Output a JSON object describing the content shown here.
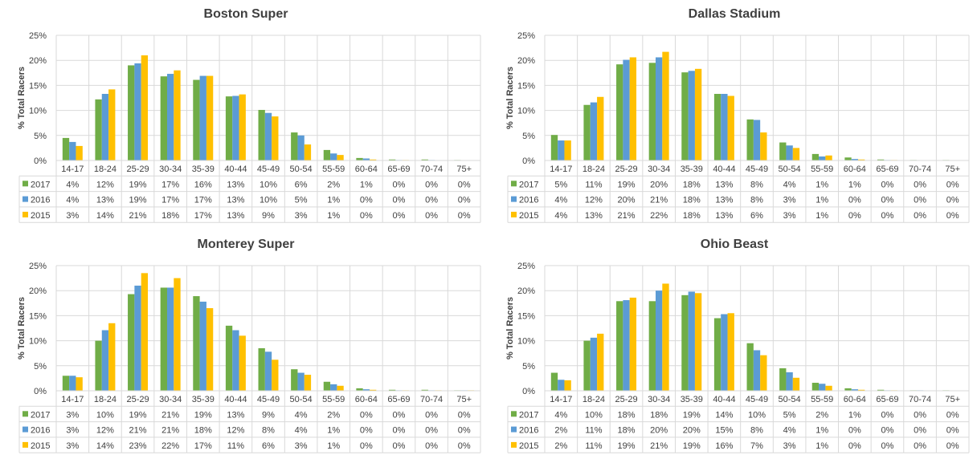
{
  "colors": {
    "2017": "#70ad47",
    "2016": "#5b9bd5",
    "2015": "#ffc000"
  },
  "chart_data": [
    {
      "type": "bar",
      "title": "Boston Super",
      "ylabel": "% Total Racers",
      "ylim": [
        0,
        25
      ],
      "yticks": [
        "0%",
        "5%",
        "10%",
        "15%",
        "20%",
        "25%"
      ],
      "categories": [
        "14-17",
        "18-24",
        "25-29",
        "30-34",
        "35-39",
        "40-44",
        "45-49",
        "50-54",
        "55-59",
        "60-64",
        "65-69",
        "70-74",
        "75+"
      ],
      "series": [
        {
          "name": "2017",
          "values": [
            4.5,
            12.2,
            19.0,
            16.8,
            16.1,
            12.8,
            10.1,
            5.6,
            2.1,
            0.5,
            0.2,
            0.2,
            0.1
          ],
          "labels": [
            "4%",
            "12%",
            "19%",
            "17%",
            "16%",
            "13%",
            "10%",
            "6%",
            "2%",
            "1%",
            "0%",
            "0%",
            "0%"
          ]
        },
        {
          "name": "2016",
          "values": [
            3.7,
            13.3,
            19.4,
            17.3,
            16.9,
            12.9,
            9.5,
            5.0,
            1.4,
            0.4,
            0.1,
            0.1,
            0.0
          ],
          "labels": [
            "4%",
            "13%",
            "19%",
            "17%",
            "17%",
            "13%",
            "10%",
            "5%",
            "1%",
            "0%",
            "0%",
            "0%",
            "0%"
          ]
        },
        {
          "name": "2015",
          "values": [
            2.9,
            14.2,
            21.0,
            18.0,
            16.9,
            13.2,
            8.8,
            3.2,
            1.1,
            0.2,
            0.1,
            0.0,
            0.0
          ],
          "labels": [
            "3%",
            "14%",
            "21%",
            "18%",
            "17%",
            "13%",
            "9%",
            "3%",
            "1%",
            "0%",
            "0%",
            "0%",
            "0%"
          ]
        }
      ]
    },
    {
      "type": "bar",
      "title": "Dallas Stadium",
      "ylabel": "% Total Racers",
      "ylim": [
        0,
        25
      ],
      "yticks": [
        "0%",
        "5%",
        "10%",
        "15%",
        "20%",
        "25%"
      ],
      "categories": [
        "14-17",
        "18-24",
        "25-29",
        "30-34",
        "35-39",
        "40-44",
        "45-49",
        "50-54",
        "55-59",
        "60-64",
        "65-69",
        "70-74",
        "75+"
      ],
      "series": [
        {
          "name": "2017",
          "values": [
            5.1,
            11.1,
            19.2,
            19.5,
            17.6,
            13.3,
            8.2,
            3.6,
            1.3,
            0.6,
            0.2,
            0.1,
            0.1
          ],
          "labels": [
            "5%",
            "11%",
            "19%",
            "20%",
            "18%",
            "13%",
            "8%",
            "4%",
            "1%",
            "1%",
            "0%",
            "0%",
            "0%"
          ]
        },
        {
          "name": "2016",
          "values": [
            4.0,
            11.6,
            20.1,
            20.6,
            17.9,
            13.3,
            8.1,
            3.0,
            0.8,
            0.3,
            0.1,
            0.0,
            0.0
          ],
          "labels": [
            "4%",
            "12%",
            "20%",
            "21%",
            "18%",
            "13%",
            "8%",
            "3%",
            "1%",
            "0%",
            "0%",
            "0%",
            "0%"
          ]
        },
        {
          "name": "2015",
          "values": [
            4.0,
            12.7,
            20.6,
            21.7,
            18.3,
            12.9,
            5.6,
            2.5,
            1.0,
            0.2,
            0.1,
            0.0,
            0.0
          ],
          "labels": [
            "4%",
            "13%",
            "21%",
            "22%",
            "18%",
            "13%",
            "6%",
            "3%",
            "1%",
            "0%",
            "0%",
            "0%",
            "0%"
          ]
        }
      ]
    },
    {
      "type": "bar",
      "title": "Monterey Super",
      "ylabel": "% Total Racers",
      "ylim": [
        0,
        25
      ],
      "yticks": [
        "0%",
        "5%",
        "10%",
        "15%",
        "20%",
        "25%"
      ],
      "categories": [
        "14-17",
        "18-24",
        "25-29",
        "30-34",
        "35-39",
        "40-44",
        "45-49",
        "50-54",
        "55-59",
        "60-64",
        "65-69",
        "70-74",
        "75+"
      ],
      "series": [
        {
          "name": "2017",
          "values": [
            3.0,
            10.0,
            19.3,
            20.6,
            18.9,
            13.0,
            8.5,
            4.3,
            1.8,
            0.5,
            0.2,
            0.2,
            0.1
          ],
          "labels": [
            "3%",
            "10%",
            "19%",
            "21%",
            "19%",
            "13%",
            "9%",
            "4%",
            "2%",
            "0%",
            "0%",
            "0%",
            "0%"
          ]
        },
        {
          "name": "2016",
          "values": [
            3.0,
            12.1,
            21.0,
            20.6,
            17.8,
            12.1,
            7.8,
            3.6,
            1.3,
            0.3,
            0.1,
            0.1,
            0.1
          ],
          "labels": [
            "3%",
            "12%",
            "21%",
            "21%",
            "18%",
            "12%",
            "8%",
            "4%",
            "1%",
            "0%",
            "0%",
            "0%",
            "0%"
          ]
        },
        {
          "name": "2015",
          "values": [
            2.7,
            13.5,
            23.5,
            22.5,
            16.5,
            11.0,
            6.2,
            3.2,
            1.0,
            0.2,
            0.1,
            0.1,
            0.1
          ],
          "labels": [
            "3%",
            "14%",
            "23%",
            "22%",
            "17%",
            "11%",
            "6%",
            "3%",
            "1%",
            "0%",
            "0%",
            "0%",
            "0%"
          ]
        }
      ]
    },
    {
      "type": "bar",
      "title": "Ohio Beast",
      "ylabel": "% Total Racers",
      "ylim": [
        0,
        25
      ],
      "yticks": [
        "0%",
        "5%",
        "10%",
        "15%",
        "20%",
        "25%"
      ],
      "categories": [
        "14-17",
        "18-24",
        "25-29",
        "30-34",
        "35-39",
        "40-44",
        "45-49",
        "50-54",
        "55-59",
        "60-64",
        "65-69",
        "70-74",
        "75+"
      ],
      "series": [
        {
          "name": "2017",
          "values": [
            3.6,
            10.0,
            17.9,
            17.9,
            19.1,
            14.5,
            9.5,
            4.5,
            1.6,
            0.5,
            0.2,
            0.1,
            0.1
          ],
          "labels": [
            "4%",
            "10%",
            "18%",
            "18%",
            "19%",
            "14%",
            "10%",
            "5%",
            "2%",
            "1%",
            "0%",
            "0%",
            "0%"
          ]
        },
        {
          "name": "2016",
          "values": [
            2.2,
            10.6,
            18.1,
            20.0,
            19.8,
            15.3,
            8.1,
            3.7,
            1.4,
            0.3,
            0.1,
            0.1,
            0.0
          ],
          "labels": [
            "2%",
            "11%",
            "18%",
            "20%",
            "20%",
            "15%",
            "8%",
            "4%",
            "1%",
            "0%",
            "0%",
            "0%",
            "0%"
          ]
        },
        {
          "name": "2015",
          "values": [
            2.1,
            11.4,
            18.6,
            21.4,
            19.5,
            15.5,
            7.1,
            2.6,
            1.0,
            0.2,
            0.1,
            0.0,
            0.0
          ],
          "labels": [
            "2%",
            "11%",
            "19%",
            "21%",
            "19%",
            "16%",
            "7%",
            "3%",
            "1%",
            "0%",
            "0%",
            "0%",
            "0%"
          ]
        }
      ]
    }
  ]
}
